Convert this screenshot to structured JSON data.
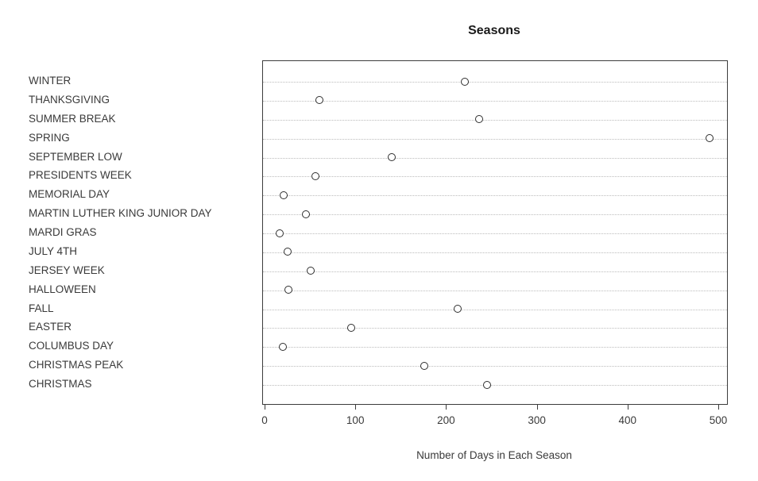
{
  "chart_data": {
    "type": "scatter",
    "variant": "horizontal-dot-plot",
    "title": "Seasons",
    "xlabel": "Number of Days in Each Season",
    "ylabel": "",
    "xlim": [
      0,
      500
    ],
    "x_ticks": [
      0,
      100,
      200,
      300,
      400,
      500
    ],
    "grid": "dotted-horizontal",
    "legend": "none",
    "marker": "open-circle",
    "categories": [
      "WINTER",
      "THANKSGIVING",
      "SUMMER BREAK",
      "SPRING",
      "SEPTEMBER LOW",
      "PRESIDENTS WEEK",
      "MEMORIAL DAY",
      "MARTIN LUTHER KING JUNIOR DAY",
      "MARDI GRAS",
      "JULY 4TH",
      "JERSEY WEEK",
      "HALLOWEEN",
      "FALL",
      "EASTER",
      "COLUMBUS DAY",
      "CHRISTMAS PEAK",
      "CHRISTMAS"
    ],
    "values": [
      220,
      60,
      236,
      490,
      140,
      56,
      21,
      45,
      16,
      25,
      50,
      26,
      212,
      95,
      20,
      176,
      245
    ],
    "colors": {
      "background": "#ffffff",
      "plot_border": "#3c3c3c",
      "gridline": "#bcbcbc",
      "marker_stroke": "#2e2e2e",
      "text": "#3a3a3a",
      "title_text": "#1a1a1a"
    }
  }
}
